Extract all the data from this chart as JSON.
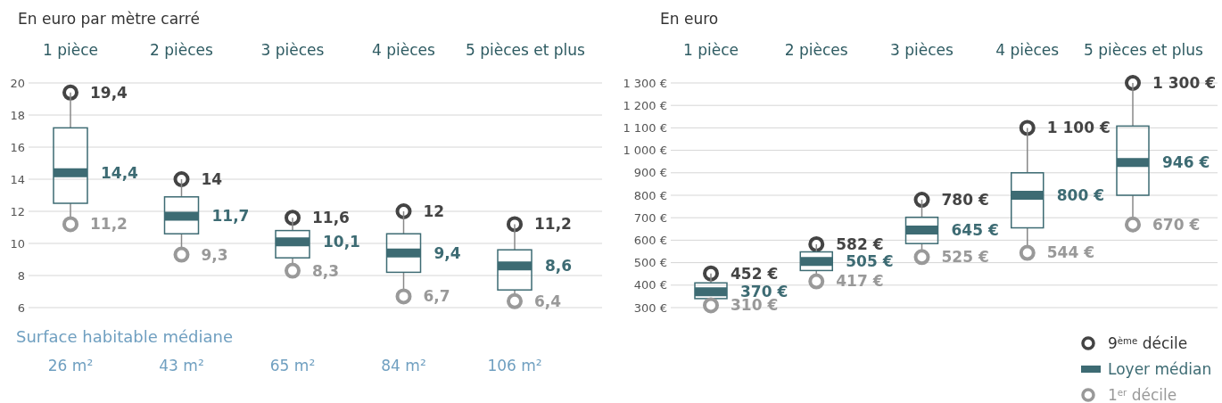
{
  "chart_data": [
    {
      "type": "box",
      "title": "En euro par mètre carré",
      "categories": [
        "1 pièce",
        "2 pièces",
        "3 pièces",
        "4 pièces",
        "5 pièces et plus"
      ],
      "ylim": [
        6,
        20
      ],
      "yticks": [
        6,
        8,
        10,
        12,
        14,
        16,
        18,
        20
      ],
      "grid": "y",
      "legend": false,
      "annotations": [
        "Surface habitable médiane",
        "26 m²",
        "43 m²",
        "65 m²",
        "84 m²",
        "106 m²"
      ],
      "series": [
        {
          "type": "scatter",
          "marker": "circle",
          "color": "#444444",
          "values": [
            19.4,
            14,
            11.6,
            12,
            11.2
          ],
          "value_labels": [
            "19,4",
            "14",
            "11,6",
            "12",
            "11,2"
          ]
        },
        {
          "color": "#3d6b73",
          "boxes": [
            {
              "low": 11.2,
              "q1": 12.5,
              "median": 14.4,
              "q3": 17.2,
              "high": 19.4
            },
            {
              "low": 9.3,
              "q1": 10.6,
              "median": 11.7,
              "q3": 12.9,
              "high": 14
            },
            {
              "low": 8.3,
              "q1": 9.1,
              "median": 10.1,
              "q3": 10.8,
              "high": 11.6
            },
            {
              "low": 6.7,
              "q1": 8.2,
              "median": 9.4,
              "q3": 10.6,
              "high": 12
            },
            {
              "low": 6.4,
              "q1": 7.1,
              "median": 8.6,
              "q3": 9.6,
              "high": 11.2
            }
          ],
          "value_labels": [
            "14,4",
            "11,7",
            "10,1",
            "9,4",
            "8,6"
          ]
        },
        {
          "type": "scatter",
          "marker": "circle",
          "color": "#999999",
          "values": [
            11.2,
            9.3,
            8.3,
            6.7,
            6.4
          ],
          "value_labels": [
            "11,2",
            "9,3",
            "8,3",
            "6,7",
            "6,4"
          ]
        }
      ]
    },
    {
      "type": "box",
      "title": "En euro",
      "categories": [
        "1 pièce",
        "2 pièces",
        "3 pièces",
        "4 pièces",
        "5 pièces et plus"
      ],
      "ylim": [
        300,
        1300
      ],
      "yticks": [
        {
          "value": 300,
          "label": "300 €"
        },
        {
          "value": 400,
          "label": "400 €"
        },
        {
          "value": 500,
          "label": "500 €"
        },
        {
          "value": 600,
          "label": "600 €"
        },
        {
          "value": 700,
          "label": "700 €"
        },
        {
          "value": 800,
          "label": "800 €"
        },
        {
          "value": 900,
          "label": "900 €"
        },
        {
          "value": 1000,
          "label": "1 000 €"
        },
        {
          "value": 1100,
          "label": "1 100 €"
        },
        {
          "value": 1200,
          "label": "1 200 €"
        },
        {
          "value": 1300,
          "label": "1 300 €"
        }
      ],
      "grid": "y",
      "legend": "bottom right",
      "series": [
        {
          "name": "9$^{ème}$ décile",
          "type": "scatter",
          "marker": "circle",
          "color": "#444444",
          "values": [
            452,
            582,
            780,
            1100,
            1300
          ],
          "value_labels": [
            "452 €",
            "582 €",
            "780 €",
            "1 100 €",
            "1 300 €"
          ]
        },
        {
          "name": "Loyer médian",
          "color": "#3d6b73",
          "boxes": [
            {
              "low": 310,
              "q1": 340,
              "median": 370,
              "q3": 410,
              "high": 452
            },
            {
              "low": 417,
              "q1": 465,
              "median": 505,
              "q3": 548,
              "high": 582
            },
            {
              "low": 525,
              "q1": 585,
              "median": 645,
              "q3": 702,
              "high": 780
            },
            {
              "low": 544,
              "q1": 655,
              "median": 800,
              "q3": 900,
              "high": 1100
            },
            {
              "low": 670,
              "q1": 800,
              "median": 946,
              "q3": 1108,
              "high": 1300
            }
          ],
          "value_labels": [
            "370 €",
            "505 €",
            "645 €",
            "800 €",
            "946 €"
          ]
        },
        {
          "name": "1$^{er}$ décile",
          "type": "scatter",
          "marker": "circle",
          "color": "#999999",
          "values": [
            310,
            417,
            525,
            544,
            670
          ],
          "value_labels": [
            "310 €",
            "417 €",
            "525 €",
            "544 €",
            "670 €"
          ]
        }
      ]
    }
  ]
}
